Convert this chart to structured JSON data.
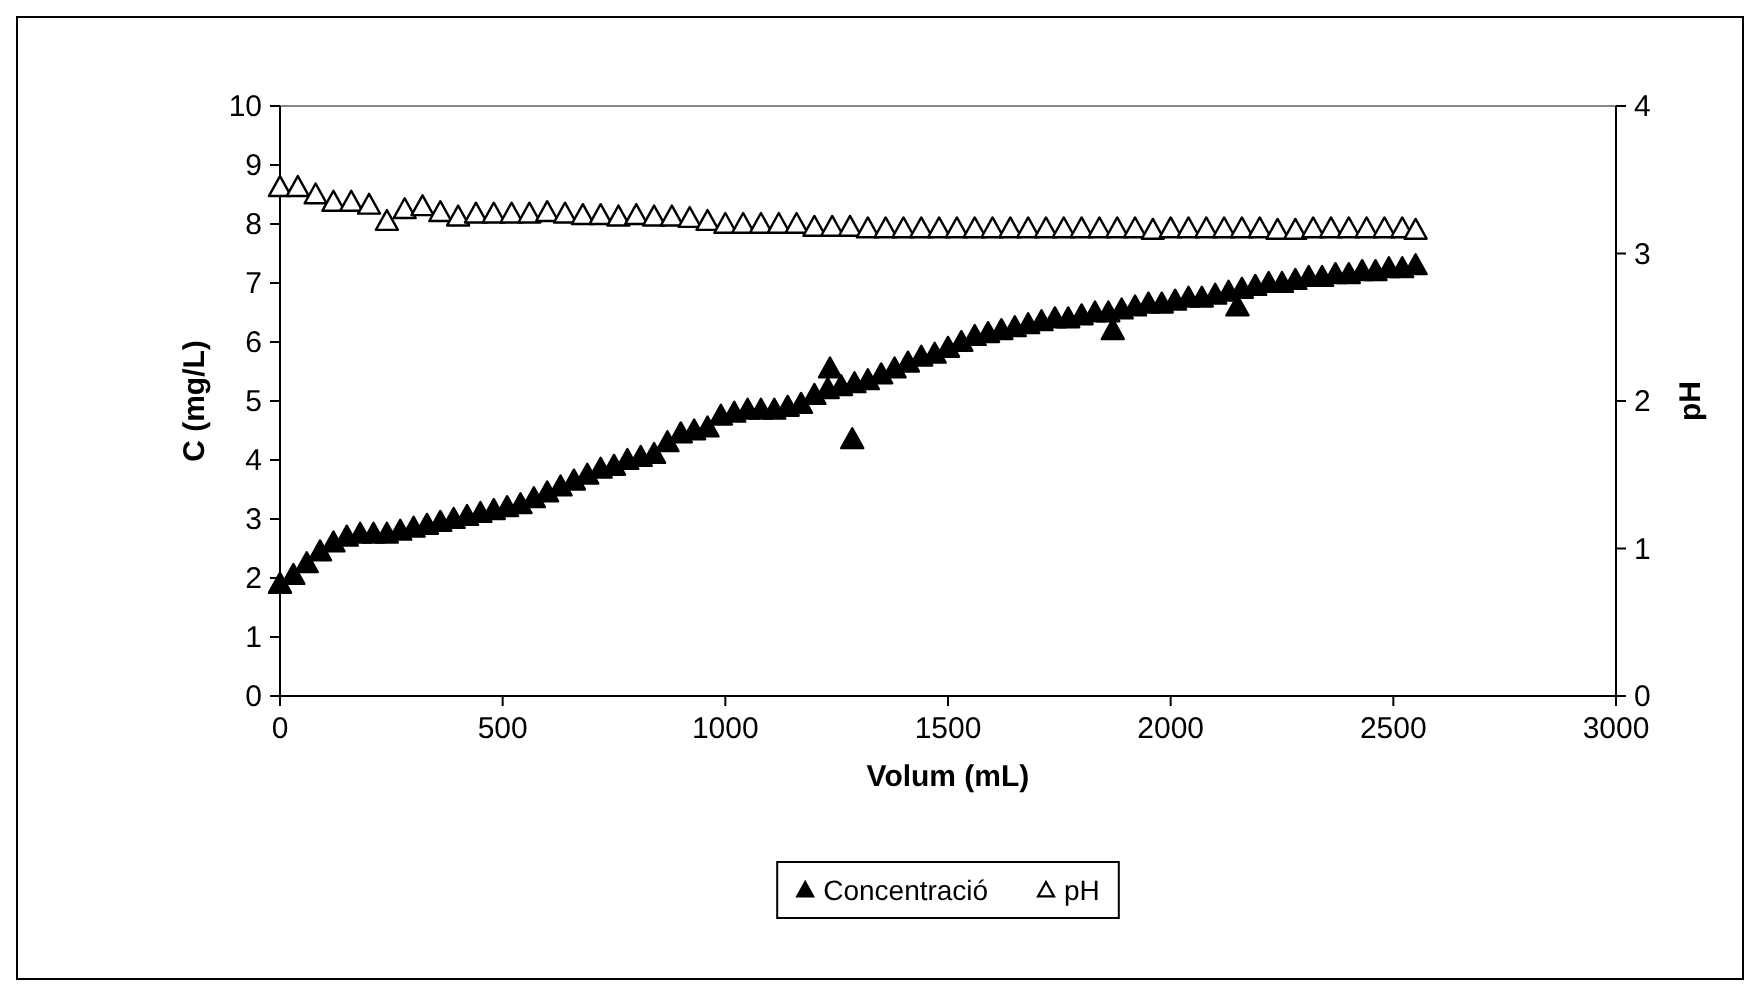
{
  "chart_data": {
    "type": "scatter",
    "xlabel": "Volum (mL)",
    "ylabel": "C (mg/L)",
    "y2label": "pH",
    "xlim": [
      0,
      3000
    ],
    "xticks": [
      0,
      500,
      1000,
      1500,
      2000,
      2500,
      3000
    ],
    "ylim": [
      0,
      10
    ],
    "yticks": [
      0,
      1,
      2,
      3,
      4,
      5,
      6,
      7,
      8,
      9,
      10
    ],
    "y2lim": [
      0,
      4
    ],
    "y2ticks": [
      0,
      1,
      2,
      3,
      4
    ],
    "grid": false,
    "legend": "bottom",
    "marker": "triangle",
    "series": [
      {
        "name": "Concentració",
        "color": "#000000",
        "x": [
          0,
          30,
          60,
          90,
          120,
          150,
          180,
          210,
          240,
          270,
          300,
          330,
          360,
          390,
          420,
          450,
          480,
          510,
          540,
          570,
          600,
          630,
          660,
          690,
          720,
          750,
          780,
          810,
          840,
          870,
          900,
          930,
          960,
          990,
          1020,
          1050,
          1080,
          1110,
          1140,
          1170,
          1200,
          1230,
          1260,
          1290,
          1320,
          1350,
          1380,
          1410,
          1440,
          1470,
          1500,
          1530,
          1560,
          1590,
          1620,
          1650,
          1680,
          1710,
          1740,
          1770,
          1800,
          1830,
          1860,
          1890,
          1920,
          1950,
          1980,
          2010,
          2040,
          2070,
          2100,
          2130,
          2160,
          2190,
          2220,
          2250,
          2280,
          2310,
          2340,
          2370,
          2400,
          2430,
          2460,
          2490,
          2520,
          2550,
          1235,
          1285,
          1870,
          2150
        ],
        "values": [
          1.9,
          2.05,
          2.25,
          2.45,
          2.6,
          2.7,
          2.75,
          2.75,
          2.75,
          2.8,
          2.85,
          2.9,
          2.95,
          3.0,
          3.05,
          3.1,
          3.15,
          3.2,
          3.25,
          3.35,
          3.45,
          3.55,
          3.65,
          3.75,
          3.85,
          3.9,
          4.0,
          4.05,
          4.1,
          4.3,
          4.45,
          4.5,
          4.55,
          4.75,
          4.8,
          4.85,
          4.85,
          4.85,
          4.9,
          4.95,
          5.1,
          5.2,
          5.25,
          5.3,
          5.35,
          5.45,
          5.55,
          5.65,
          5.75,
          5.8,
          5.9,
          6.0,
          6.1,
          6.15,
          6.2,
          6.25,
          6.3,
          6.35,
          6.4,
          6.4,
          6.45,
          6.5,
          6.5,
          6.55,
          6.6,
          6.65,
          6.65,
          6.7,
          6.75,
          6.75,
          6.8,
          6.85,
          6.9,
          6.95,
          7.0,
          7.0,
          7.05,
          7.1,
          7.1,
          7.15,
          7.15,
          7.2,
          7.2,
          7.25,
          7.25,
          7.3,
          5.55,
          4.35,
          6.2,
          6.6
        ]
      },
      {
        "name": "pH",
        "color": "#ffffff",
        "axis": "y2",
        "x": [
          0,
          40,
          80,
          120,
          160,
          200,
          240,
          280,
          320,
          360,
          400,
          440,
          480,
          520,
          560,
          600,
          640,
          680,
          720,
          760,
          800,
          840,
          880,
          920,
          960,
          1000,
          1040,
          1080,
          1120,
          1160,
          1200,
          1240,
          1280,
          1320,
          1360,
          1400,
          1440,
          1480,
          1520,
          1560,
          1600,
          1640,
          1680,
          1720,
          1760,
          1800,
          1840,
          1880,
          1920,
          1960,
          2000,
          2040,
          2080,
          2120,
          2160,
          2200,
          2240,
          2280,
          2320,
          2360,
          2400,
          2440,
          2480,
          2520,
          2550
        ],
        "values": [
          3.45,
          3.45,
          3.4,
          3.35,
          3.35,
          3.33,
          3.22,
          3.3,
          3.32,
          3.28,
          3.25,
          3.27,
          3.27,
          3.27,
          3.27,
          3.28,
          3.27,
          3.26,
          3.26,
          3.25,
          3.26,
          3.25,
          3.25,
          3.24,
          3.22,
          3.2,
          3.2,
          3.2,
          3.2,
          3.2,
          3.18,
          3.18,
          3.18,
          3.17,
          3.17,
          3.17,
          3.17,
          3.17,
          3.17,
          3.17,
          3.17,
          3.17,
          3.17,
          3.17,
          3.17,
          3.17,
          3.17,
          3.17,
          3.17,
          3.16,
          3.17,
          3.17,
          3.17,
          3.17,
          3.17,
          3.17,
          3.16,
          3.16,
          3.17,
          3.17,
          3.17,
          3.17,
          3.17,
          3.17,
          3.16
        ]
      }
    ]
  }
}
